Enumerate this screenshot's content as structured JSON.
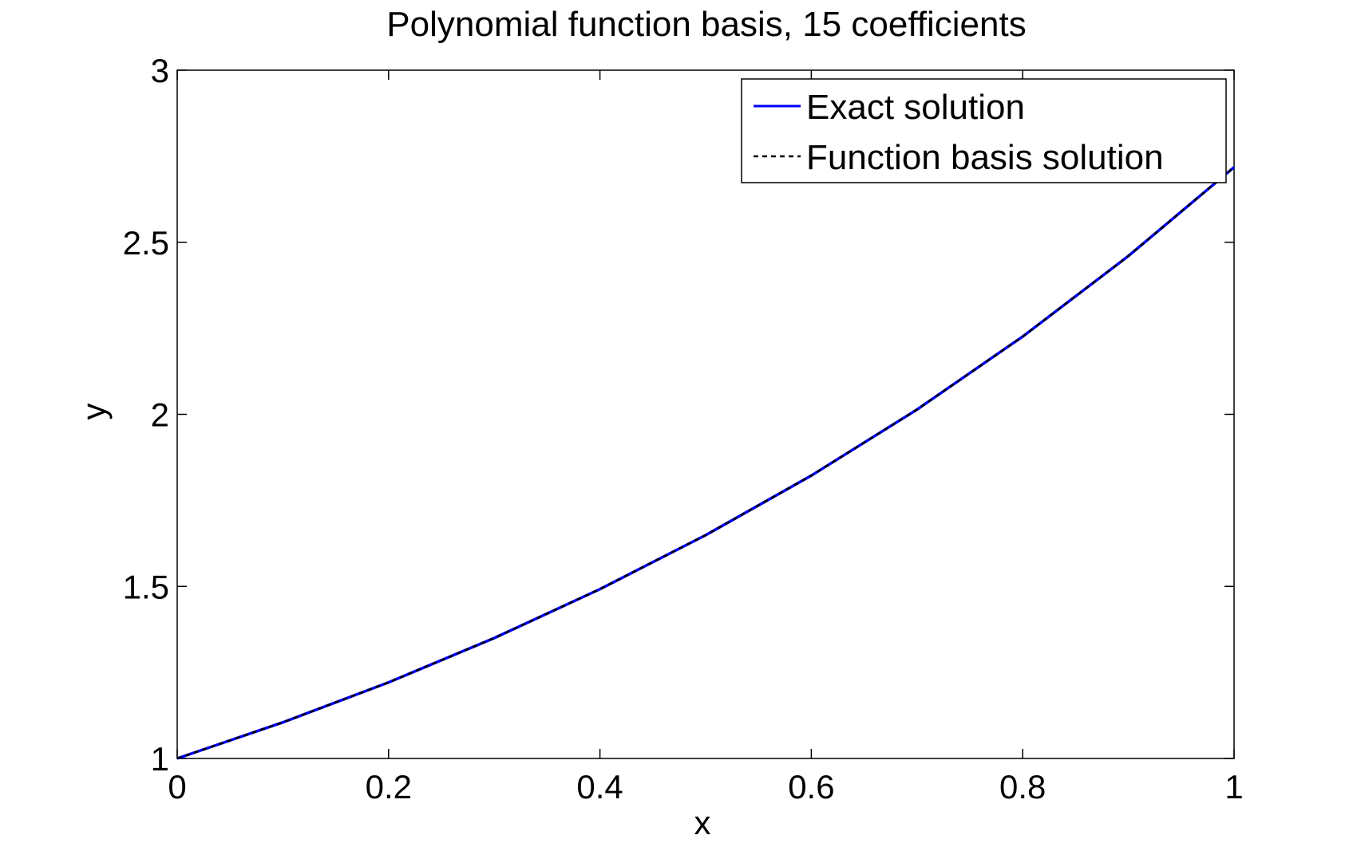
{
  "chart_data": {
    "type": "line",
    "title": "Polynomial function basis, 15 coefficients",
    "xlabel": "x",
    "ylabel": "y",
    "xlim": [
      0,
      1
    ],
    "ylim": [
      1,
      3
    ],
    "xticks": [
      0,
      0.2,
      0.4,
      0.6,
      0.8,
      1
    ],
    "xtick_labels": [
      "0",
      "0.2",
      "0.4",
      "0.6",
      "0.8",
      "1"
    ],
    "yticks": [
      1,
      1.5,
      2,
      2.5,
      3
    ],
    "ytick_labels": [
      "1",
      "1.5",
      "2",
      "2.5",
      "3"
    ],
    "grid": false,
    "legend_position": "top-right",
    "x": [
      0,
      0.1,
      0.2,
      0.3,
      0.4,
      0.5,
      0.6,
      0.7,
      0.8,
      0.9,
      1.0
    ],
    "series": [
      {
        "name": "Exact solution",
        "color": "#0000ff",
        "style": "solid",
        "values": [
          1.0,
          1.105,
          1.221,
          1.35,
          1.492,
          1.649,
          1.822,
          2.014,
          2.226,
          2.46,
          2.718
        ]
      },
      {
        "name": "Function basis solution",
        "color": "#000000",
        "style": "dashed",
        "values": [
          1.0,
          1.105,
          1.221,
          1.35,
          1.492,
          1.649,
          1.822,
          2.014,
          2.226,
          2.46,
          2.718
        ]
      }
    ]
  }
}
